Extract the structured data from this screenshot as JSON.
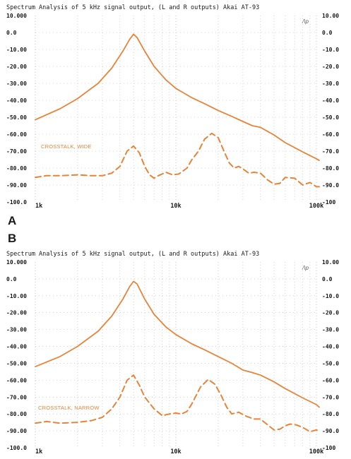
{
  "colors": {
    "trace": "#e8843a",
    "grid": "#b8b8b8",
    "text": "#1a1a1a"
  },
  "panel_letters": [
    "A",
    "B"
  ],
  "chart_data": [
    {
      "type": "line",
      "title": "Spectrum Analysis of 5 kHz signal output, (L and R outputs) Akai AT-93",
      "corner_mark": "/\\p",
      "y_ticks_left": [
        "10.000",
        "0.0",
        "-10.00",
        "-20.00",
        "-30.00",
        "-40.00",
        "-50.00",
        "-60.00",
        "-70.00",
        "-80.00",
        "-90.00",
        "-100.0"
      ],
      "y_ticks_right": [
        "10.00",
        "0.0",
        "-10.0",
        "-20.0",
        "-30.0",
        "-40.0",
        "-50.0",
        "-60.0",
        "-70.0",
        "-80.0",
        "-90.0",
        "-100"
      ],
      "x_ticks": [
        "1k",
        "10k",
        "100k"
      ],
      "x_scale": "log",
      "xlim": [
        1000,
        100000
      ],
      "ylim": [
        -100,
        10
      ],
      "grid": true,
      "annotation": "CROSSTALK, WIDE",
      "series": [
        {
          "style": "solid",
          "x": [
            1000,
            1500,
            2000,
            2800,
            3500,
            4200,
            4700,
            5000,
            5300,
            6000,
            7000,
            8500,
            10000,
            13000,
            16000,
            20000,
            25000,
            30000,
            35000,
            40000,
            50000,
            60000,
            80000,
            100000,
            110000
          ],
          "y": [
            -51.5,
            -45,
            -39,
            -30,
            -21,
            -11,
            -4,
            -1,
            -3,
            -11,
            -20,
            -28,
            -33,
            -38.5,
            -42,
            -46,
            -49.5,
            -52.5,
            -55,
            -56,
            -60.5,
            -65,
            -70.5,
            -74.5,
            -75.5
          ]
        },
        {
          "style": "dashed",
          "x": [
            1000,
            1200,
            1500,
            2000,
            2500,
            3000,
            3500,
            4000,
            4500,
            5000,
            5500,
            6000,
            6500,
            7000,
            7500,
            8500,
            9500,
            10500,
            12000,
            13000,
            14500,
            16000,
            18000,
            20000,
            22000,
            24000,
            26000,
            28000,
            30000,
            33000,
            36000,
            40000,
            45000,
            50000,
            55000,
            60000,
            70000,
            80000,
            90000,
            100000,
            110000
          ],
          "y": [
            -85.5,
            -84.5,
            -84.5,
            -84,
            -84.5,
            -84.5,
            -83,
            -79,
            -70,
            -67,
            -71,
            -79,
            -84,
            -86,
            -84.5,
            -82.5,
            -84,
            -83.5,
            -80,
            -75,
            -70,
            -63,
            -59.5,
            -62,
            -70,
            -77,
            -80,
            -79,
            -80.5,
            -83,
            -82.5,
            -83,
            -87,
            -89.5,
            -89,
            -85.5,
            -86,
            -90,
            -88.5,
            -91,
            -91
          ]
        }
      ]
    },
    {
      "type": "line",
      "title": "Spectrum Analysis of 5 kHz signal output, (L and R outputs) Akai AT-93",
      "corner_mark": "/\\p",
      "y_ticks_left": [
        "10.000",
        "0.0",
        "-10.00",
        "-20.00",
        "-30.00",
        "-40.00",
        "-50.00",
        "-60.00",
        "-70.00",
        "-80.00",
        "-90.00",
        "-100.0"
      ],
      "y_ticks_right": [
        "10.00",
        "0.0",
        "-10.0",
        "-20.0",
        "-30.0",
        "-40.0",
        "-50.0",
        "-60.0",
        "-70.0",
        "-80.0",
        "-90.0",
        "-100"
      ],
      "x_ticks": [
        "1k",
        "10k",
        "100k"
      ],
      "x_scale": "log",
      "xlim": [
        1000,
        100000
      ],
      "ylim": [
        -100,
        10
      ],
      "grid": true,
      "annotation": "CROSSTALK, NARROW",
      "series": [
        {
          "style": "solid",
          "x": [
            1000,
            1500,
            2000,
            2800,
            3500,
            4200,
            4700,
            5000,
            5300,
            6000,
            7000,
            8500,
            10000,
            13000,
            16000,
            20000,
            25000,
            30000,
            35000,
            40000,
            50000,
            60000,
            80000,
            100000,
            110000
          ],
          "y": [
            -52,
            -46,
            -40,
            -31,
            -22,
            -12,
            -4.5,
            -1.5,
            -3,
            -12,
            -21,
            -28.5,
            -33,
            -38.5,
            -42,
            -46,
            -50,
            -54,
            -55.5,
            -57,
            -61,
            -65,
            -70.5,
            -74.5,
            -76
          ]
        },
        {
          "style": "dashed",
          "x": [
            1000,
            1200,
            1500,
            2000,
            2500,
            3000,
            3500,
            4000,
            4500,
            5000,
            5500,
            6000,
            7000,
            8000,
            9000,
            10000,
            11000,
            12000,
            13000,
            15000,
            17000,
            19000,
            21000,
            23000,
            25000,
            28000,
            32000,
            36000,
            40000,
            45000,
            50000,
            55000,
            60000,
            65000,
            72000,
            80000,
            90000,
            100000,
            110000
          ],
          "y": [
            -85.5,
            -84.5,
            -85.5,
            -85,
            -84,
            -82,
            -77,
            -70,
            -60,
            -57,
            -63,
            -70,
            -77,
            -81,
            -80,
            -79.5,
            -80,
            -78.5,
            -74,
            -64,
            -59.5,
            -62.5,
            -69,
            -76,
            -80,
            -79,
            -81.5,
            -83,
            -83,
            -86.5,
            -89.5,
            -89,
            -87,
            -86,
            -86.5,
            -88,
            -90.5,
            -89.5,
            -90
          ]
        }
      ]
    }
  ]
}
